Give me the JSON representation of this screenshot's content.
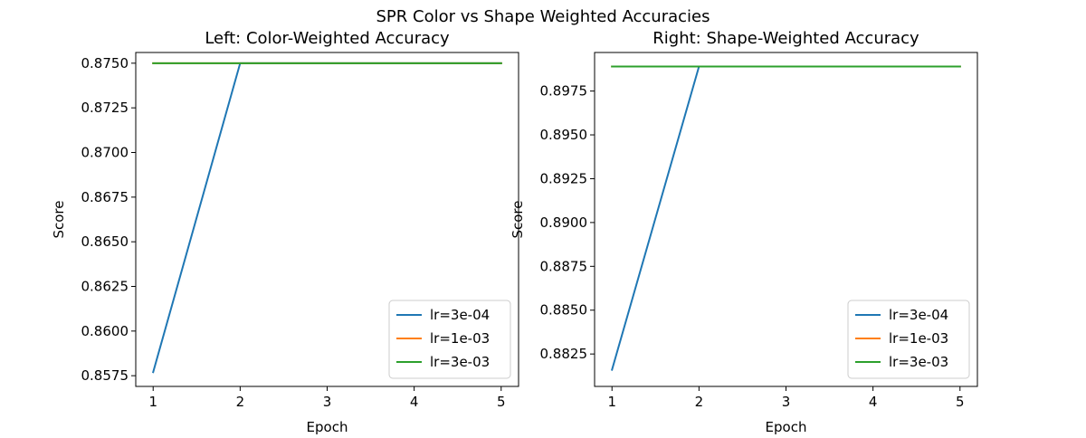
{
  "figure": {
    "title": "SPR Color vs Shape Weighted Accuracies"
  },
  "chart_data": [
    {
      "type": "line",
      "title": "Left: Color-Weighted Accuracy",
      "xlabel": "Epoch",
      "ylabel": "Score",
      "x": [
        1,
        2,
        3,
        4,
        5
      ],
      "xticks": [
        "1",
        "2",
        "3",
        "4",
        "5"
      ],
      "xlim": [
        0.8,
        5.2
      ],
      "yticks": [
        "0.8575",
        "0.8600",
        "0.8625",
        "0.8650",
        "0.8675",
        "0.8700",
        "0.8725",
        "0.8750"
      ],
      "ylim": [
        0.8569,
        0.8756
      ],
      "grid": false,
      "legend": "lower right",
      "series": [
        {
          "name": "lr=3e-04",
          "color": "#1f77b4",
          "values": [
            0.8577,
            0.875,
            0.875,
            0.875,
            0.875
          ]
        },
        {
          "name": "lr=1e-03",
          "color": "#ff7f0e",
          "values": [
            0.875,
            0.875,
            0.875,
            0.875,
            0.875
          ]
        },
        {
          "name": "lr=3e-03",
          "color": "#2ca02c",
          "values": [
            0.875,
            0.875,
            0.875,
            0.875,
            0.875
          ]
        }
      ]
    },
    {
      "type": "line",
      "title": "Right: Shape-Weighted Accuracy",
      "xlabel": "Epoch",
      "ylabel": "Score",
      "x": [
        1,
        2,
        3,
        4,
        5
      ],
      "xticks": [
        "1",
        "2",
        "3",
        "4",
        "5"
      ],
      "xlim": [
        0.8,
        5.2
      ],
      "yticks": [
        "0.8825",
        "0.8850",
        "0.8875",
        "0.8900",
        "0.8925",
        "0.8950",
        "0.8975"
      ],
      "ylim": [
        0.88065,
        0.8997
      ],
      "grid": false,
      "legend": "lower right",
      "series": [
        {
          "name": "lr=3e-04",
          "color": "#1f77b4",
          "values": [
            0.8816,
            0.8989,
            0.8989,
            0.8989,
            0.8989
          ]
        },
        {
          "name": "lr=1e-03",
          "color": "#ff7f0e",
          "values": [
            0.8989,
            0.8989,
            0.8989,
            0.8989,
            0.8989
          ]
        },
        {
          "name": "lr=3e-03",
          "color": "#2ca02c",
          "values": [
            0.8989,
            0.8989,
            0.8989,
            0.8989,
            0.8989
          ]
        }
      ]
    }
  ]
}
